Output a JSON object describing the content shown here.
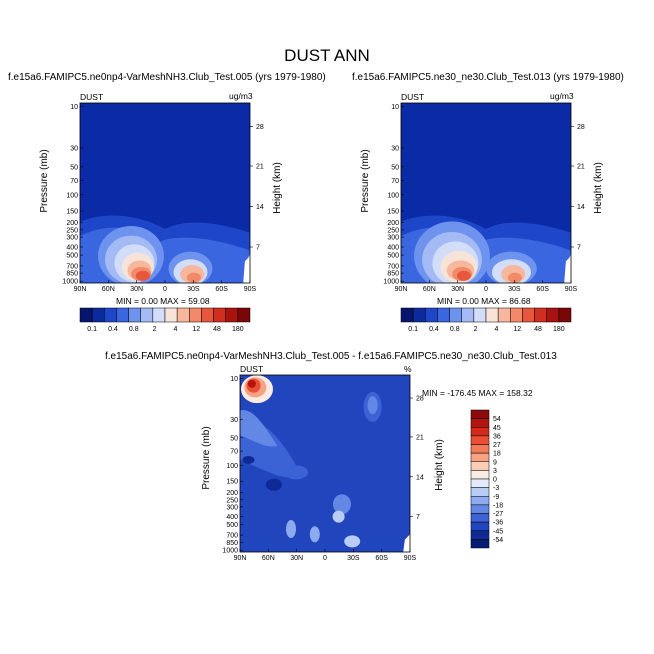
{
  "page": {
    "title": "DUST ANN"
  },
  "colors": {
    "deep_blue": "#0a1f9b",
    "panel_bg": "#0a2aa6"
  },
  "chart_data": [
    {
      "type": "heatmap",
      "title": "f.e15a6.FAMIPC5.ne0np4-VarMeshNH3.Club_Test.005 (yrs 1979-1980)",
      "variable": "DUST",
      "units": "ug/m3",
      "ylabel": "Pressure (mb)",
      "y2label": "Height (km)",
      "x_ticks": [
        "90N",
        "60N",
        "30N",
        "0",
        "30S",
        "60S",
        "90S"
      ],
      "y_ticks": [
        "10",
        "30",
        "50",
        "70",
        "100",
        "150",
        "200",
        "250",
        "300",
        "400",
        "500",
        "700",
        "850",
        "1000"
      ],
      "y2_ticks": [
        "28",
        "21",
        "14",
        "7"
      ],
      "stats": "MIN =   0.00  MAX =  59.08",
      "min": 0.0,
      "max": 59.08,
      "colorbar": {
        "labels": [
          "0.1",
          "0.4",
          "0.8",
          "2",
          "4",
          "12",
          "48",
          "180"
        ],
        "colors": [
          "#08146e",
          "#0c2a9c",
          "#1d47c8",
          "#3a66e0",
          "#6e93ee",
          "#a3baf4",
          "#d2ddf9",
          "#f8e3d8",
          "#f7b79c",
          "#f28a69",
          "#e6573d",
          "#d02e1f",
          "#a8120f",
          "#7a0707"
        ]
      }
    },
    {
      "type": "heatmap",
      "title": "f.e15a6.FAMIPC5.ne30_ne30.Club_Test.013 (yrs 1979-1980)",
      "variable": "DUST",
      "units": "ug/m3",
      "ylabel": "Pressure (mb)",
      "y2label": "Height (km)",
      "x_ticks": [
        "90N",
        "60N",
        "30N",
        "0",
        "30S",
        "60S",
        "90S"
      ],
      "y_ticks": [
        "10",
        "30",
        "50",
        "70",
        "100",
        "150",
        "200",
        "250",
        "300",
        "400",
        "500",
        "700",
        "850",
        "1000"
      ],
      "y2_ticks": [
        "28",
        "21",
        "14",
        "7"
      ],
      "stats": "MIN =   0.00  MAX =  86.68",
      "min": 0.0,
      "max": 86.68,
      "colorbar": {
        "labels": [
          "0.1",
          "0.4",
          "0.8",
          "2",
          "4",
          "12",
          "48",
          "180"
        ],
        "colors": [
          "#08146e",
          "#0c2a9c",
          "#1d47c8",
          "#3a66e0",
          "#6e93ee",
          "#a3baf4",
          "#d2ddf9",
          "#f8e3d8",
          "#f7b79c",
          "#f28a69",
          "#e6573d",
          "#d02e1f",
          "#a8120f",
          "#7a0707"
        ]
      }
    },
    {
      "type": "heatmap",
      "title": "f.e15a6.FAMIPC5.ne0np4-VarMeshNH3.Club_Test.005 - f.e15a6.FAMIPC5.ne30_ne30.Club_Test.013",
      "variable": "DUST",
      "units": "%",
      "ylabel": "Pressure (mb)",
      "y2label": "Height (km)",
      "x_ticks": [
        "90N",
        "60N",
        "30N",
        "0",
        "30S",
        "60S",
        "90S"
      ],
      "y_ticks": [
        "10",
        "30",
        "50",
        "70",
        "100",
        "150",
        "200",
        "250",
        "300",
        "400",
        "500",
        "700",
        "850",
        "1000"
      ],
      "y2_ticks": [
        "28",
        "21",
        "14",
        "7"
      ],
      "stats": "MIN = -176.45  MAX = 158.32",
      "min": -176.45,
      "max": 158.32,
      "colorbar": {
        "labels": [
          "54",
          "45",
          "36",
          "27",
          "18",
          "9",
          "3",
          "0",
          "-3",
          "-9",
          "-18",
          "-27",
          "-36",
          "-45",
          "-54"
        ],
        "colors": [
          "#8e0b0b",
          "#b3140f",
          "#d42a1c",
          "#e84f35",
          "#f27a58",
          "#f6a283",
          "#f9cdb6",
          "#fbece3",
          "#e3ebfb",
          "#b9ccf5",
          "#8eaaee",
          "#6287e4",
          "#3b63d6",
          "#2145bd",
          "#0f2a97",
          "#061a72"
        ]
      }
    }
  ]
}
